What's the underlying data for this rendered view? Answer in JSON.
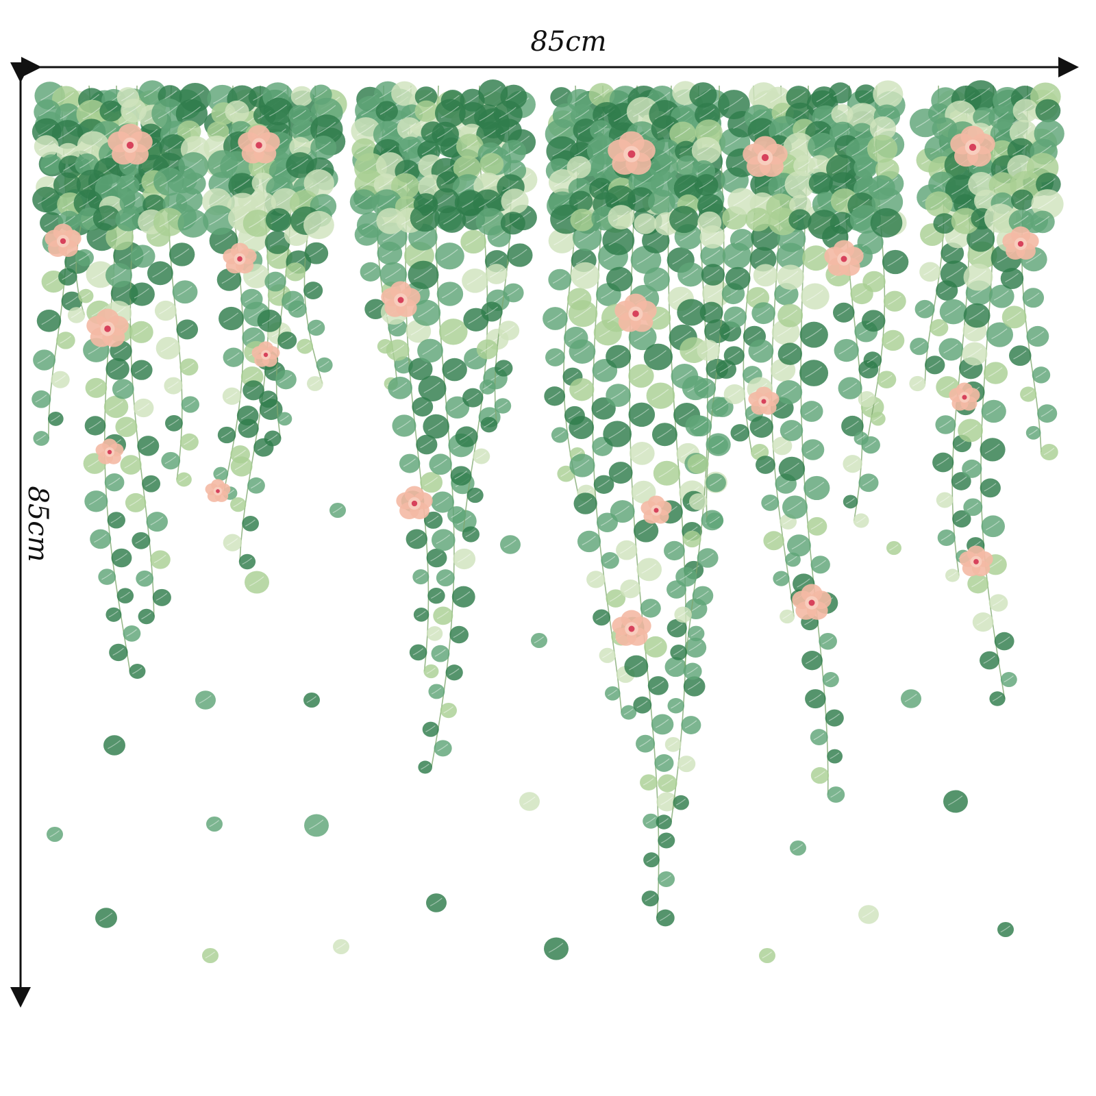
{
  "image": {
    "subject": "hanging-vines-wall-decal",
    "width_label": "85cm",
    "height_label": "85cm"
  },
  "colors": {
    "background": "#ffffff",
    "dimension_line": "#111111",
    "leaf_dark": "#2f7d4c",
    "leaf_mid": "#5fa577",
    "leaf_light": "#a9cf94",
    "leaf_pale": "#cfe3bd",
    "stem": "#7ea86e",
    "flower_petal": "#f4b9a4",
    "flower_center": "#d7425c"
  },
  "icons": {
    "arrow": "double-headed-arrow",
    "leaf": "eucalyptus-leaf",
    "flower": "pink-blossom"
  }
}
